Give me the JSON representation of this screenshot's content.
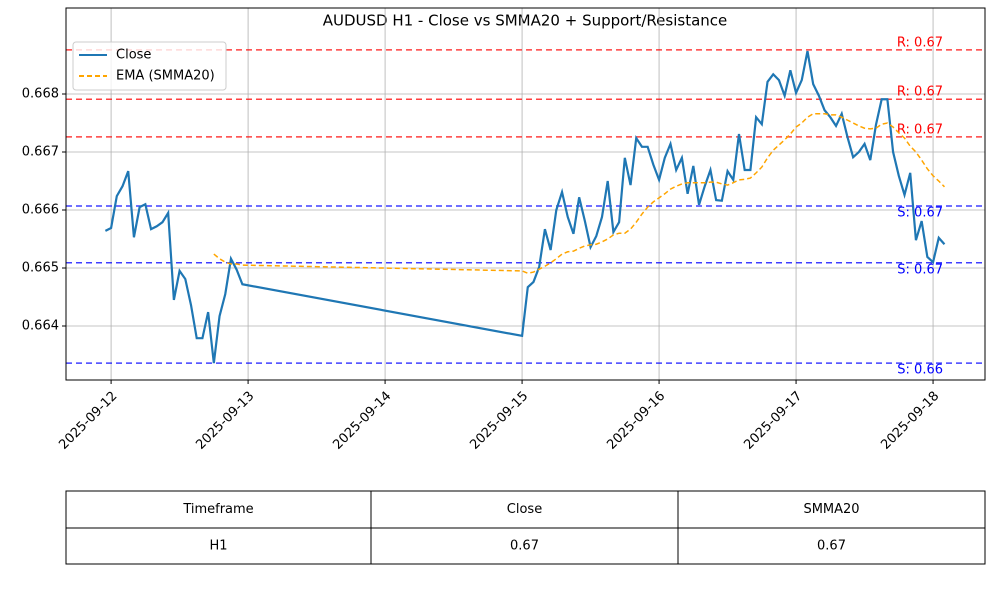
{
  "chart_data": {
    "type": "line",
    "title": "AUDUSD H1 - Close vs SMMA20 + Support/Resistance",
    "x": [
      -1,
      0,
      1,
      2,
      3,
      4,
      5,
      6,
      7,
      8,
      9,
      10,
      11,
      12,
      13,
      14,
      15,
      16,
      17,
      18,
      19,
      20,
      21,
      22,
      23,
      72,
      73,
      74,
      75,
      76,
      77,
      78,
      79,
      80,
      81,
      82,
      83,
      84,
      85,
      86,
      87,
      88,
      89,
      90,
      91,
      92,
      93,
      94,
      95,
      96,
      97,
      98,
      99,
      100,
      101,
      102,
      103,
      104,
      105,
      106,
      107,
      108,
      109,
      110,
      111,
      112,
      113,
      114,
      115,
      116,
      117,
      118,
      119,
      120,
      121,
      122,
      123,
      124,
      125,
      126,
      127,
      128,
      129,
      130,
      131,
      132,
      133,
      134,
      135,
      136,
      137,
      138,
      139,
      140,
      141,
      142,
      143,
      144,
      145,
      146
    ],
    "xlim": [
      -7.9,
      153.1
    ],
    "xticks": [
      {
        "value": 0,
        "label": "2025-09-12"
      },
      {
        "value": 24,
        "label": "2025-09-13"
      },
      {
        "value": 48,
        "label": "2025-09-14"
      },
      {
        "value": 72,
        "label": "2025-09-15"
      },
      {
        "value": 96,
        "label": "2025-09-16"
      },
      {
        "value": 120,
        "label": "2025-09-17"
      },
      {
        "value": 144,
        "label": "2025-09-18"
      }
    ],
    "ylim": [
      0.663069,
      0.669483
    ],
    "yticks": [
      0.664,
      0.665,
      0.666,
      0.667,
      0.668
    ],
    "grid": true,
    "legend": "upper-left",
    "series": [
      {
        "name": "Close",
        "color": "#1f77b4",
        "dash": "solid",
        "values": [
          0.66564,
          0.66569,
          0.66624,
          0.66641,
          0.66667,
          0.66553,
          0.66605,
          0.6661,
          0.66567,
          0.66572,
          0.66579,
          0.66595,
          0.66445,
          0.66495,
          0.66481,
          0.66436,
          0.66379,
          0.66379,
          0.66424,
          0.66336,
          0.66417,
          0.66455,
          0.66516,
          0.66497,
          0.66472,
          0.66383,
          0.66467,
          0.66476,
          0.66502,
          0.66567,
          0.66531,
          0.666,
          0.66631,
          0.66588,
          0.66559,
          0.66622,
          0.66581,
          0.66536,
          0.66555,
          0.66588,
          0.6665,
          0.66562,
          0.66579,
          0.6669,
          0.66643,
          0.66724,
          0.66709,
          0.66709,
          0.66678,
          0.66652,
          0.6669,
          0.66714,
          0.66669,
          0.6669,
          0.66628,
          0.66676,
          0.66609,
          0.66641,
          0.66669,
          0.66617,
          0.66616,
          0.66667,
          0.66652,
          0.66731,
          0.66669,
          0.66669,
          0.6676,
          0.66748,
          0.66821,
          0.66834,
          0.66824,
          0.66797,
          0.66841,
          0.66802,
          0.66824,
          0.66874,
          0.66817,
          0.66797,
          0.66772,
          0.6676,
          0.66745,
          0.66766,
          0.66726,
          0.66691,
          0.667,
          0.66714,
          0.66686,
          0.66747,
          0.66791,
          0.66791,
          0.667,
          0.66659,
          0.66626,
          0.66664,
          0.66548,
          0.66581,
          0.66519,
          0.6651,
          0.66552,
          0.66541
        ]
      },
      {
        "name": "EMA (SMMA20)",
        "color": "#ffa500",
        "dash": "dashed",
        "values": [
          null,
          null,
          null,
          null,
          null,
          null,
          null,
          null,
          null,
          null,
          null,
          null,
          null,
          null,
          null,
          null,
          null,
          null,
          null,
          0.66524,
          0.66516,
          0.6651,
          0.66507,
          0.66507,
          0.66505,
          0.66495,
          0.66491,
          0.66493,
          0.66498,
          0.66503,
          0.66509,
          0.66516,
          0.66524,
          0.66528,
          0.66529,
          0.66534,
          0.66538,
          0.6654,
          0.66541,
          0.66545,
          0.6655,
          0.66557,
          0.6656,
          0.6656,
          0.66567,
          0.66579,
          0.66593,
          0.66605,
          0.66614,
          0.66621,
          0.66628,
          0.66636,
          0.66641,
          0.66645,
          0.66647,
          0.66647,
          0.66647,
          0.66647,
          0.66648,
          0.66648,
          0.66645,
          0.66643,
          0.66647,
          0.66652,
          0.66653,
          0.66655,
          0.66664,
          0.66674,
          0.6669,
          0.66703,
          0.66712,
          0.66721,
          0.66731,
          0.66743,
          0.6675,
          0.6676,
          0.66766,
          0.66766,
          0.66766,
          0.66764,
          0.66764,
          0.6676,
          0.66755,
          0.6675,
          0.66745,
          0.66741,
          0.6674,
          0.66741,
          0.66748,
          0.6675,
          0.66743,
          0.66733,
          0.66724,
          0.6671,
          0.667,
          0.66686,
          0.66671,
          0.66659,
          0.6665,
          0.6664
        ]
      }
    ],
    "hlines": [
      {
        "value": 0.66876,
        "label": "R: 0.67",
        "color": "#ff0000",
        "side": "above"
      },
      {
        "value": 0.66791,
        "label": "R: 0.67",
        "color": "#ff0000",
        "side": "above"
      },
      {
        "value": 0.66726,
        "label": "R: 0.67",
        "color": "#ff0000",
        "side": "above"
      },
      {
        "value": 0.66607,
        "label": "S: 0.67",
        "color": "#0000ff",
        "side": "below"
      },
      {
        "value": 0.66509,
        "label": "S: 0.67",
        "color": "#0000ff",
        "side": "below"
      },
      {
        "value": 0.66336,
        "label": "S: 0.66",
        "color": "#0000ff",
        "side": "below"
      }
    ],
    "table": {
      "columns": [
        "Timeframe",
        "Close",
        "SMMA20"
      ],
      "rows": [
        [
          "H1",
          "0.67",
          "0.67"
        ]
      ]
    }
  }
}
